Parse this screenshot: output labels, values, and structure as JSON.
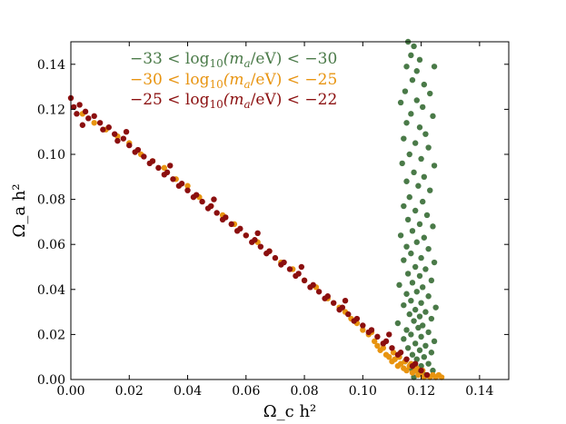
{
  "chart_data": {
    "type": "scatter",
    "title": "",
    "xlabel": "Ω_c h²",
    "ylabel": "Ω_a h²",
    "xlim": [
      0.0,
      0.15
    ],
    "ylim": [
      0.0,
      0.15
    ],
    "x_ticks": [
      0.0,
      0.02,
      0.04,
      0.06,
      0.08,
      0.1,
      0.12,
      0.14
    ],
    "y_ticks": [
      0.0,
      0.02,
      0.04,
      0.06,
      0.08,
      0.1,
      0.12,
      0.14
    ],
    "x_tick_labels": [
      "0.00",
      "0.02",
      "0.04",
      "0.06",
      "0.08",
      "0.10",
      "0.12",
      "0.14"
    ],
    "y_tick_labels": [
      "0.00",
      "0.02",
      "0.04",
      "0.06",
      "0.08",
      "0.10",
      "0.12",
      "0.14"
    ],
    "grid": false,
    "legend_position": "top-center",
    "series": [
      {
        "name": "−33 < log10(m_a/eV) < −30",
        "label": {
          "pre": "−33 < log",
          "sub1": "10",
          "mid": "(m",
          "sub2": "a",
          "post": "/eV) < −30"
        },
        "color": "#4a7a48",
        "points": [
          [
            0.1155,
            0.15
          ],
          [
            0.1175,
            0.148
          ],
          [
            0.1165,
            0.144
          ],
          [
            0.1195,
            0.142
          ],
          [
            0.115,
            0.139
          ],
          [
            0.1185,
            0.137
          ],
          [
            0.1245,
            0.139
          ],
          [
            0.117,
            0.133
          ],
          [
            0.121,
            0.131
          ],
          [
            0.1145,
            0.128
          ],
          [
            0.123,
            0.127
          ],
          [
            0.1185,
            0.124
          ],
          [
            0.113,
            0.123
          ],
          [
            0.1205,
            0.121
          ],
          [
            0.1165,
            0.118
          ],
          [
            0.124,
            0.117
          ],
          [
            0.115,
            0.114
          ],
          [
            0.1195,
            0.112
          ],
          [
            0.1215,
            0.109
          ],
          [
            0.114,
            0.107
          ],
          [
            0.118,
            0.105
          ],
          [
            0.1225,
            0.103
          ],
          [
            0.116,
            0.1
          ],
          [
            0.12,
            0.098
          ],
          [
            0.1135,
            0.096
          ],
          [
            0.1245,
            0.095
          ],
          [
            0.1175,
            0.092
          ],
          [
            0.121,
            0.09
          ],
          [
            0.115,
            0.088
          ],
          [
            0.119,
            0.086
          ],
          [
            0.123,
            0.084
          ],
          [
            0.116,
            0.081
          ],
          [
            0.1205,
            0.079
          ],
          [
            0.114,
            0.077
          ],
          [
            0.118,
            0.075
          ],
          [
            0.122,
            0.073
          ],
          [
            0.1155,
            0.071
          ],
          [
            0.1195,
            0.069
          ],
          [
            0.124,
            0.068
          ],
          [
            0.117,
            0.066
          ],
          [
            0.113,
            0.064
          ],
          [
            0.121,
            0.063
          ],
          [
            0.1185,
            0.061
          ],
          [
            0.115,
            0.059
          ],
          [
            0.1225,
            0.058
          ],
          [
            0.1165,
            0.056
          ],
          [
            0.12,
            0.054
          ],
          [
            0.114,
            0.053
          ],
          [
            0.1245,
            0.052
          ],
          [
            0.118,
            0.05
          ],
          [
            0.1215,
            0.049
          ],
          [
            0.1155,
            0.047
          ],
          [
            0.1195,
            0.046
          ],
          [
            0.1235,
            0.044
          ],
          [
            0.117,
            0.043
          ],
          [
            0.1125,
            0.042
          ],
          [
            0.1205,
            0.041
          ],
          [
            0.1185,
            0.039
          ],
          [
            0.115,
            0.038
          ],
          [
            0.1225,
            0.037
          ],
          [
            0.1165,
            0.035
          ],
          [
            0.12,
            0.034
          ],
          [
            0.114,
            0.033
          ],
          [
            0.125,
            0.032
          ],
          [
            0.118,
            0.031
          ],
          [
            0.1215,
            0.03
          ],
          [
            0.116,
            0.029
          ],
          [
            0.1195,
            0.028
          ],
          [
            0.1235,
            0.027
          ],
          [
            0.1175,
            0.026
          ],
          [
            0.112,
            0.025
          ],
          [
            0.1205,
            0.024
          ],
          [
            0.119,
            0.023
          ],
          [
            0.115,
            0.022
          ],
          [
            0.1225,
            0.021
          ],
          [
            0.1165,
            0.02
          ],
          [
            0.12,
            0.019
          ],
          [
            0.114,
            0.018
          ],
          [
            0.1245,
            0.017
          ],
          [
            0.118,
            0.016
          ],
          [
            0.1215,
            0.015
          ],
          [
            0.1155,
            0.014
          ],
          [
            0.1195,
            0.013
          ],
          [
            0.1235,
            0.012
          ],
          [
            0.117,
            0.011
          ],
          [
            0.121,
            0.01
          ],
          [
            0.1185,
            0.009
          ],
          [
            0.1145,
            0.008
          ],
          [
            0.1225,
            0.007
          ],
          [
            0.12,
            0.006
          ],
          [
            0.1165,
            0.005
          ],
          [
            0.124,
            0.004
          ],
          [
            0.119,
            0.003
          ],
          [
            0.1215,
            0.002
          ],
          [
            0.1175,
            0.001
          ]
        ]
      },
      {
        "name": "−30 < log10(m_a/eV) < −25",
        "label": {
          "pre": "−30 < log",
          "sub1": "10",
          "mid": "(m",
          "sub2": "a",
          "post": "/eV) < −25"
        },
        "color": "#e89410",
        "points": [
          [
            0.004,
            0.118
          ],
          [
            0.008,
            0.114
          ],
          [
            0.012,
            0.111
          ],
          [
            0.016,
            0.108
          ],
          [
            0.02,
            0.105
          ],
          [
            0.024,
            0.1
          ],
          [
            0.028,
            0.097
          ],
          [
            0.032,
            0.094
          ],
          [
            0.036,
            0.089
          ],
          [
            0.04,
            0.086
          ],
          [
            0.044,
            0.081
          ],
          [
            0.048,
            0.077
          ],
          [
            0.052,
            0.073
          ],
          [
            0.056,
            0.069
          ],
          [
            0.06,
            0.064
          ],
          [
            0.064,
            0.061
          ],
          [
            0.068,
            0.057
          ],
          [
            0.072,
            0.052
          ],
          [
            0.076,
            0.049
          ],
          [
            0.08,
            0.044
          ],
          [
            0.084,
            0.041
          ],
          [
            0.088,
            0.036
          ],
          [
            0.092,
            0.032
          ],
          [
            0.094,
            0.03
          ],
          [
            0.096,
            0.027
          ],
          [
            0.098,
            0.025
          ],
          [
            0.1,
            0.022
          ],
          [
            0.102,
            0.02
          ],
          [
            0.104,
            0.017
          ],
          [
            0.105,
            0.015
          ],
          [
            0.106,
            0.013
          ],
          [
            0.107,
            0.014
          ],
          [
            0.108,
            0.011
          ],
          [
            0.109,
            0.01
          ],
          [
            0.11,
            0.008
          ],
          [
            0.111,
            0.009
          ],
          [
            0.112,
            0.006
          ],
          [
            0.113,
            0.007
          ],
          [
            0.114,
            0.005
          ],
          [
            0.115,
            0.004
          ],
          [
            0.116,
            0.006
          ],
          [
            0.117,
            0.003
          ],
          [
            0.118,
            0.004
          ],
          [
            0.119,
            0.002
          ],
          [
            0.12,
            0.003
          ],
          [
            0.121,
            0.001
          ],
          [
            0.122,
            0.002
          ],
          [
            0.123,
            0.001
          ],
          [
            0.124,
            0.002
          ],
          [
            0.125,
            0.001
          ],
          [
            0.126,
            0.002
          ],
          [
            0.127,
            0.001
          ],
          [
            0.1105,
            0.012
          ],
          [
            0.1125,
            0.01
          ],
          [
            0.1145,
            0.008
          ],
          [
            0.1165,
            0.007
          ],
          [
            0.1185,
            0.005
          ],
          [
            0.1205,
            0.004
          ],
          [
            0.103,
            0.021
          ],
          [
            0.107,
            0.016
          ]
        ]
      },
      {
        "name": "−25 < log10(m_a/eV) < −22",
        "label": {
          "pre": "−25 < log",
          "sub1": "10",
          "mid": "(m",
          "sub2": "a",
          "post": "/eV) < −22"
        },
        "color": "#8b0f0f",
        "points": [
          [
            0.0,
            0.125
          ],
          [
            0.001,
            0.121
          ],
          [
            0.002,
            0.118
          ],
          [
            0.003,
            0.122
          ],
          [
            0.005,
            0.119
          ],
          [
            0.006,
            0.116
          ],
          [
            0.008,
            0.117
          ],
          [
            0.01,
            0.114
          ],
          [
            0.011,
            0.111
          ],
          [
            0.013,
            0.112
          ],
          [
            0.015,
            0.109
          ],
          [
            0.016,
            0.106
          ],
          [
            0.018,
            0.107
          ],
          [
            0.02,
            0.104
          ],
          [
            0.022,
            0.101
          ],
          [
            0.023,
            0.102
          ],
          [
            0.025,
            0.099
          ],
          [
            0.027,
            0.096
          ],
          [
            0.028,
            0.097
          ],
          [
            0.03,
            0.094
          ],
          [
            0.032,
            0.091
          ],
          [
            0.033,
            0.092
          ],
          [
            0.035,
            0.089
          ],
          [
            0.037,
            0.086
          ],
          [
            0.038,
            0.087
          ],
          [
            0.04,
            0.084
          ],
          [
            0.042,
            0.081
          ],
          [
            0.043,
            0.082
          ],
          [
            0.045,
            0.079
          ],
          [
            0.047,
            0.076
          ],
          [
            0.048,
            0.077
          ],
          [
            0.05,
            0.074
          ],
          [
            0.052,
            0.071
          ],
          [
            0.053,
            0.072
          ],
          [
            0.055,
            0.069
          ],
          [
            0.057,
            0.066
          ],
          [
            0.058,
            0.067
          ],
          [
            0.06,
            0.064
          ],
          [
            0.062,
            0.061
          ],
          [
            0.063,
            0.062
          ],
          [
            0.065,
            0.059
          ],
          [
            0.067,
            0.056
          ],
          [
            0.068,
            0.057
          ],
          [
            0.07,
            0.054
          ],
          [
            0.072,
            0.051
          ],
          [
            0.073,
            0.052
          ],
          [
            0.075,
            0.049
          ],
          [
            0.077,
            0.046
          ],
          [
            0.078,
            0.047
          ],
          [
            0.08,
            0.044
          ],
          [
            0.082,
            0.041
          ],
          [
            0.083,
            0.042
          ],
          [
            0.085,
            0.039
          ],
          [
            0.087,
            0.036
          ],
          [
            0.088,
            0.037
          ],
          [
            0.09,
            0.034
          ],
          [
            0.092,
            0.031
          ],
          [
            0.093,
            0.032
          ],
          [
            0.095,
            0.029
          ],
          [
            0.097,
            0.026
          ],
          [
            0.098,
            0.027
          ],
          [
            0.1,
            0.024
          ],
          [
            0.102,
            0.021
          ],
          [
            0.103,
            0.022
          ],
          [
            0.105,
            0.019
          ],
          [
            0.107,
            0.016
          ],
          [
            0.108,
            0.017
          ],
          [
            0.11,
            0.014
          ],
          [
            0.112,
            0.011
          ],
          [
            0.113,
            0.012
          ],
          [
            0.115,
            0.009
          ],
          [
            0.117,
            0.006
          ],
          [
            0.118,
            0.007
          ],
          [
            0.12,
            0.004
          ],
          [
            0.122,
            0.002
          ],
          [
            0.004,
            0.113
          ],
          [
            0.019,
            0.11
          ],
          [
            0.034,
            0.095
          ],
          [
            0.049,
            0.08
          ],
          [
            0.064,
            0.065
          ],
          [
            0.079,
            0.05
          ],
          [
            0.094,
            0.035
          ],
          [
            0.109,
            0.02
          ]
        ]
      }
    ]
  }
}
